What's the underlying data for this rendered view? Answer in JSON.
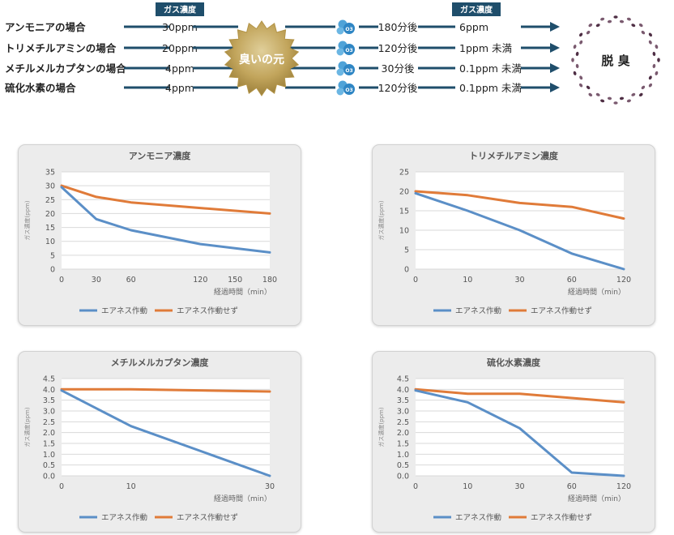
{
  "diagram": {
    "badge_label": "ガス濃度",
    "source_label": "臭いの元",
    "o3_label": "O3",
    "goal_label": "脱 臭",
    "rows": [
      {
        "name": "アンモニアの場合",
        "initial": "30ppm",
        "time": "180分後",
        "final": "6ppm"
      },
      {
        "name": "トリメチルアミンの場合",
        "initial": "20ppm",
        "time": "120分後",
        "final": "1ppm 未満"
      },
      {
        "name": "メチルメルカプタンの場合",
        "initial": "4ppm",
        "time": "30分後",
        "final": "0.1ppm 未満"
      },
      {
        "name": "硫化水素の場合",
        "initial": "4ppm",
        "time": "120分後",
        "final": "0.1ppm 未満"
      }
    ]
  },
  "chart_data": [
    {
      "type": "line",
      "title": "アンモニア濃度",
      "xlabel": "経過時間（min）",
      "ylabel": "ガス濃度(ppm)",
      "categories": [
        "0",
        "30",
        "60",
        "120",
        "150",
        "180"
      ],
      "x": [
        0,
        30,
        60,
        120,
        150,
        180
      ],
      "ylim": [
        0,
        35
      ],
      "yticks": [
        "0",
        "5",
        "10",
        "15",
        "20",
        "25",
        "30",
        "35"
      ],
      "grid": true,
      "legend": "bottom",
      "series": [
        {
          "name": "エアネス作動",
          "color": "#5b8fc7",
          "values": [
            29.5,
            18,
            14,
            9,
            7.5,
            6
          ]
        },
        {
          "name": "エアネス作動せず",
          "color": "#e07b39",
          "values": [
            30,
            26,
            24,
            22,
            21,
            20
          ]
        }
      ]
    },
    {
      "type": "line",
      "title": "トリメチルアミン濃度",
      "xlabel": "経過時間（min）",
      "ylabel": "ガス濃度(ppm)",
      "categories": [
        "0",
        "10",
        "30",
        "60",
        "120"
      ],
      "x": [
        0,
        10,
        30,
        60,
        120
      ],
      "ylim": [
        0,
        25
      ],
      "yticks": [
        "0",
        "5",
        "10",
        "15",
        "20",
        "25"
      ],
      "grid": true,
      "legend": "bottom",
      "series": [
        {
          "name": "エアネス作動",
          "color": "#5b8fc7",
          "values": [
            19.5,
            15,
            10,
            4,
            0
          ]
        },
        {
          "name": "エアネス作動せず",
          "color": "#e07b39",
          "values": [
            20,
            19,
            17,
            16,
            13
          ]
        }
      ]
    },
    {
      "type": "line",
      "title": "メチルメルカプタン濃度",
      "xlabel": "経過時間（min）",
      "ylabel": "ガス濃度(ppm)",
      "categories": [
        "0",
        "10",
        "30"
      ],
      "x": [
        0,
        10,
        30
      ],
      "ylim": [
        0,
        4.5
      ],
      "yticks": [
        "0.0",
        "0.5",
        "1.0",
        "1.5",
        "2.0",
        "2.5",
        "3.0",
        "3.5",
        "4.0",
        "4.5"
      ],
      "grid": true,
      "legend": "bottom",
      "series": [
        {
          "name": "エアネス作動",
          "color": "#5b8fc7",
          "values": [
            3.95,
            2.3,
            0
          ]
        },
        {
          "name": "エアネス作動せず",
          "color": "#e07b39",
          "values": [
            4.0,
            4.0,
            3.9
          ]
        }
      ]
    },
    {
      "type": "line",
      "title": "硫化水素濃度",
      "xlabel": "経過時間（min）",
      "ylabel": "ガス濃度(ppm)",
      "categories": [
        "0",
        "10",
        "30",
        "60",
        "120"
      ],
      "x": [
        0,
        10,
        30,
        60,
        120
      ],
      "ylim": [
        0,
        4.5
      ],
      "yticks": [
        "0.0",
        "0.5",
        "1.0",
        "1.5",
        "2.0",
        "2.5",
        "3.0",
        "3.5",
        "4.0",
        "4.5"
      ],
      "grid": true,
      "legend": "bottom",
      "series": [
        {
          "name": "エアネス作動",
          "color": "#5b8fc7",
          "values": [
            3.95,
            3.4,
            2.2,
            0.15,
            0
          ]
        },
        {
          "name": "エアネス作動せず",
          "color": "#e07b39",
          "values": [
            4.0,
            3.8,
            3.8,
            3.6,
            3.4
          ]
        }
      ]
    }
  ]
}
